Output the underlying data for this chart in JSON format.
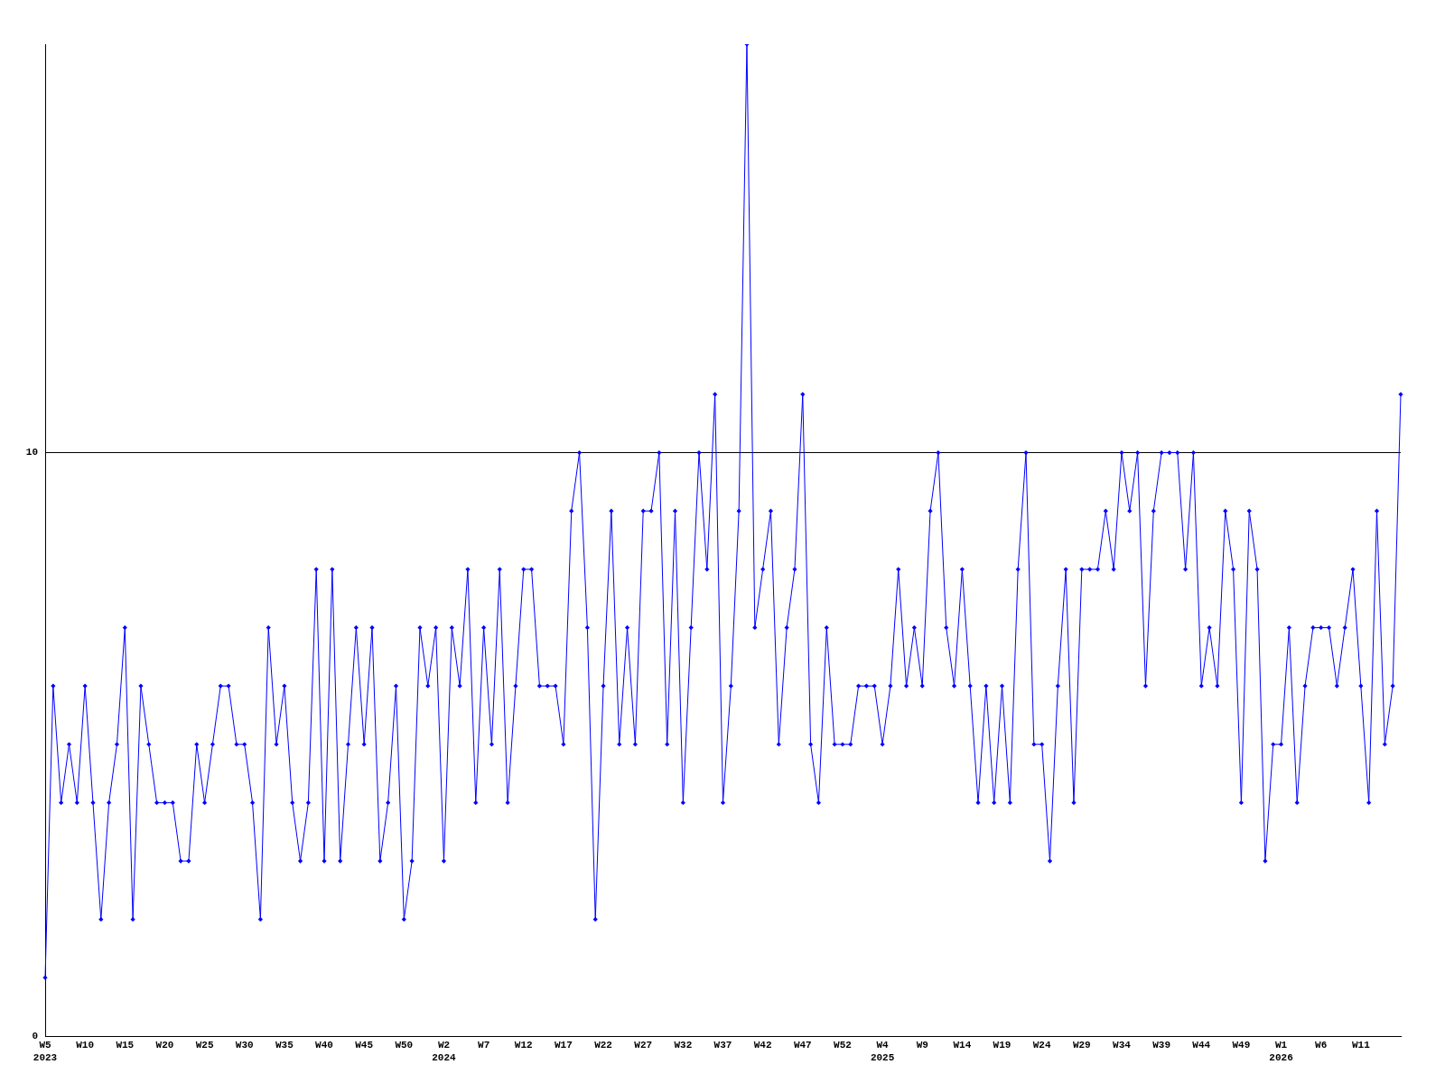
{
  "chart_data": {
    "type": "line",
    "categories": [
      "W5\n2023",
      null,
      null,
      null,
      null,
      "W10",
      null,
      null,
      null,
      null,
      "W15",
      null,
      null,
      null,
      null,
      "W20",
      null,
      null,
      null,
      null,
      "W25",
      null,
      null,
      null,
      null,
      "W30",
      null,
      null,
      null,
      null,
      "W35",
      null,
      null,
      null,
      null,
      "W40",
      null,
      null,
      null,
      null,
      "W45",
      null,
      null,
      null,
      null,
      "W50",
      null,
      null,
      null,
      null,
      "W2\n2024",
      null,
      null,
      null,
      null,
      "W7",
      null,
      null,
      null,
      null,
      "W12",
      null,
      null,
      null,
      null,
      "W17",
      null,
      null,
      null,
      null,
      "W22",
      null,
      null,
      null,
      null,
      "W27",
      null,
      null,
      null,
      null,
      "W32",
      null,
      null,
      null,
      null,
      "W37",
      null,
      null,
      null,
      null,
      "W42",
      null,
      null,
      null,
      null,
      "W47",
      null,
      null,
      null,
      null,
      "W52",
      null,
      null,
      null,
      null,
      "W4\n2025",
      null,
      null,
      null,
      null,
      "W9",
      null,
      null,
      null,
      null,
      "W14",
      null,
      null,
      null,
      null,
      "W19",
      null,
      null,
      null,
      null,
      "W24",
      null,
      null,
      null,
      null,
      "W29",
      null,
      null,
      null,
      null,
      "W34",
      null,
      null,
      null,
      null,
      "W39",
      null,
      null,
      null,
      null,
      "W44",
      null,
      null,
      null,
      null,
      "W49",
      null,
      null,
      null,
      null,
      "W1\n2026",
      null,
      null,
      null,
      null,
      "W6",
      null,
      null,
      null,
      null,
      "W11",
      null,
      null,
      null,
      null,
      null
    ],
    "series": [
      {
        "color": "#0000ff",
        "values": [
          1,
          6,
          4,
          5,
          4,
          6,
          4,
          2,
          4,
          5,
          7,
          2,
          6,
          5,
          4,
          4,
          4,
          3,
          3,
          5,
          4,
          5,
          6,
          6,
          5,
          5,
          4,
          2,
          7,
          5,
          6,
          4,
          3,
          4,
          8,
          3,
          8,
          3,
          5,
          7,
          5,
          7,
          3,
          4,
          6,
          2,
          3,
          7,
          6,
          7,
          3,
          7,
          6,
          8,
          4,
          7,
          5,
          8,
          4,
          6,
          8,
          8,
          6,
          6,
          6,
          5,
          9,
          10,
          7,
          2,
          6,
          9,
          5,
          7,
          5,
          9,
          9,
          10,
          5,
          9,
          4,
          7,
          10,
          8,
          11,
          4,
          6,
          9,
          17,
          7,
          8,
          9,
          5,
          7,
          8,
          11,
          5,
          4,
          7,
          5,
          5,
          5,
          6,
          6,
          6,
          5,
          6,
          8,
          6,
          7,
          6,
          9,
          10,
          7,
          6,
          8,
          6,
          4,
          6,
          4,
          6,
          4,
          8,
          10,
          5,
          5,
          3,
          6,
          8,
          4,
          8,
          8,
          8,
          9,
          8,
          10,
          9,
          10,
          6,
          9,
          10,
          10,
          10,
          8,
          10,
          6,
          7,
          6,
          9,
          8,
          4,
          9,
          8,
          3,
          5,
          5,
          7,
          4,
          6,
          7,
          7,
          7,
          6,
          7,
          8,
          6,
          4,
          9,
          5,
          6,
          11
        ]
      }
    ],
    "ylim": [
      0,
      17
    ],
    "yticks": [
      0,
      10
    ],
    "grid": "y",
    "marker": "diamond",
    "line_style": "solid"
  }
}
